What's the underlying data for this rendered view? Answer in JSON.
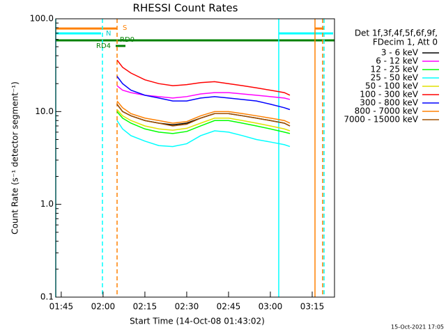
{
  "chart_data": {
    "type": "line",
    "title": "RHESSI Count Rates",
    "x_label": "Start Time (14-Oct-08 01:43:02)",
    "y_label": "Count Rate (s⁻¹ detector segment⁻¹)",
    "legend_header": [
      "Det 1f,3f,4f,5f,6f,9f,",
      "FDecim 1, Att 0"
    ],
    "footer": "15-Oct-2021 17:05",
    "annotations": [
      "S",
      "N",
      "RD0",
      "RD4"
    ],
    "log_y": true,
    "xlim": [
      103.03,
      203
    ],
    "ylim": [
      0.1,
      100
    ],
    "xticks": [
      {
        "value": 105,
        "label": "01:45"
      },
      {
        "value": 120,
        "label": "02:00"
      },
      {
        "value": 135,
        "label": "02:15"
      },
      {
        "value": 150,
        "label": "02:30"
      },
      {
        "value": 165,
        "label": "02:45"
      },
      {
        "value": 180,
        "label": "03:00"
      },
      {
        "value": 195,
        "label": "03:15"
      }
    ],
    "yticks": [
      {
        "value": 100,
        "label": "100.0"
      },
      {
        "value": 10,
        "label": "10.0"
      },
      {
        "value": 1,
        "label": "1.0"
      },
      0.1
    ],
    "x": [
      125,
      127,
      130,
      135,
      140,
      145,
      150,
      155,
      160,
      165,
      170,
      175,
      180,
      185,
      187
    ],
    "series": [
      {
        "name": "3 - 6 keV",
        "color": "#000000",
        "values": [
          12,
          10,
          9,
          8,
          7.5,
          7.2,
          7.5,
          8.5,
          9.5,
          9.5,
          9,
          8.5,
          8,
          7.5,
          7
        ]
      },
      {
        "name": "6 - 12 keV",
        "color": "#ff00ff",
        "values": [
          19,
          17,
          16,
          15,
          14.5,
          14,
          14.5,
          15.5,
          16,
          16,
          15.5,
          15,
          14.5,
          14,
          13.5
        ]
      },
      {
        "name": "12 - 25 keV",
        "color": "#00ff00",
        "values": [
          10,
          8.5,
          7.5,
          6.5,
          6,
          5.8,
          6.1,
          7,
          8,
          8,
          7.5,
          7,
          6.5,
          6,
          5.8
        ]
      },
      {
        "name": "25 - 50 keV",
        "color": "#00ffff",
        "values": [
          8,
          6.5,
          5.5,
          4.8,
          4.3,
          4.2,
          4.5,
          5.5,
          6.2,
          6,
          5.5,
          5,
          4.7,
          4.4,
          4.2
        ]
      },
      {
        "name": "50 - 100 keV",
        "color": "#e0e000",
        "values": [
          10.5,
          9,
          8,
          7,
          6.5,
          6.3,
          6.6,
          7.5,
          8.5,
          8.5,
          8,
          7.5,
          7,
          6.5,
          6.2
        ]
      },
      {
        "name": "100 - 300 keV",
        "color": "#ff0000",
        "values": [
          36,
          30,
          26,
          22,
          20,
          19,
          19.5,
          20.5,
          21,
          20,
          19,
          18,
          17,
          16,
          15
        ]
      },
      {
        "name": "300 - 800 keV",
        "color": "#0000ff",
        "values": [
          24,
          20,
          17,
          15,
          14,
          13,
          13,
          14,
          14.5,
          14,
          13.5,
          13,
          12,
          11,
          10.5
        ]
      },
      {
        "name": "800 - 7000 keV",
        "color": "#ff8000",
        "values": [
          13,
          11,
          9.5,
          8.5,
          8,
          7.5,
          7.8,
          9,
          10,
          10,
          9.5,
          9,
          8.5,
          8,
          7.5
        ]
      },
      {
        "name": "7000 - 15000 keV",
        "color": "#a05000",
        "values": [
          12,
          10,
          9,
          8,
          7.5,
          7,
          7.3,
          8.5,
          9.5,
          9.5,
          9,
          8.5,
          8,
          7.5,
          7
        ]
      }
    ]
  }
}
